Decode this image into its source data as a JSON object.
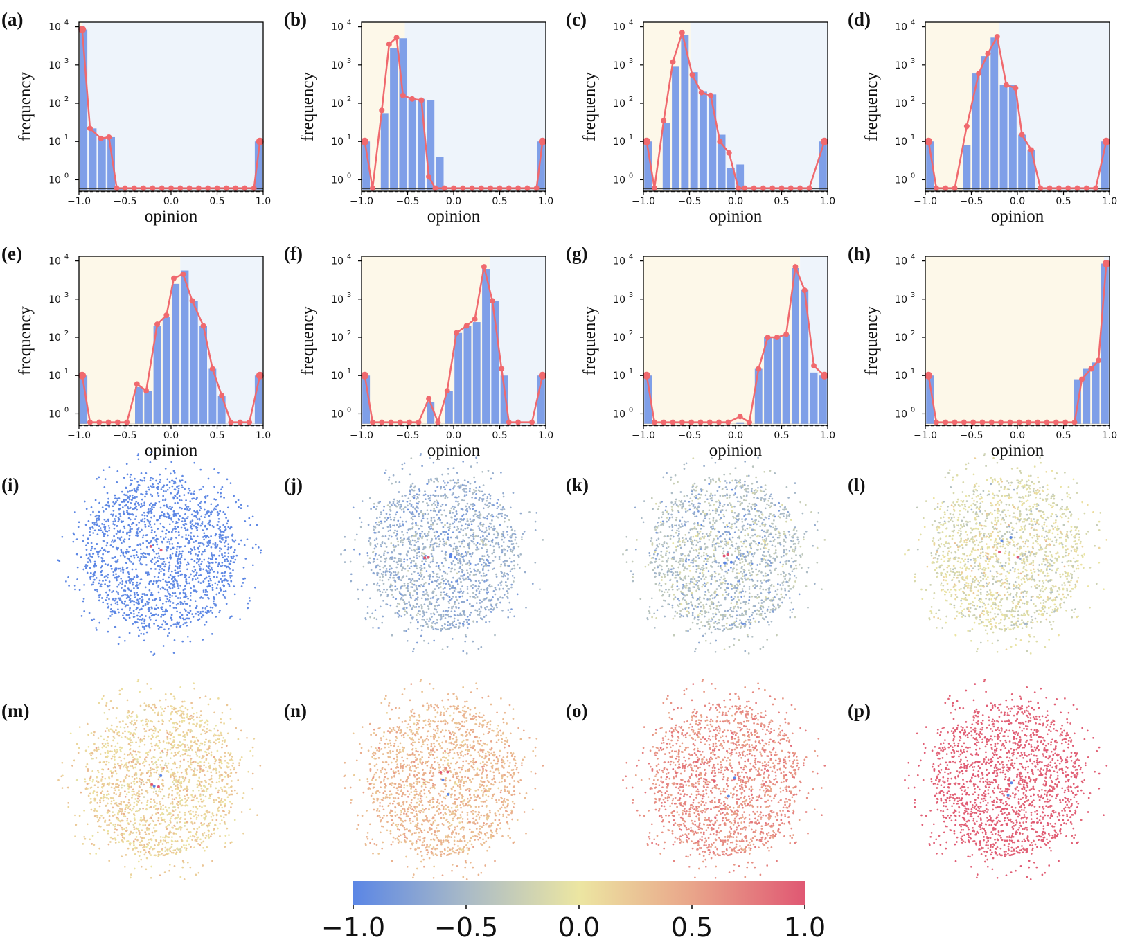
{
  "chart_data": [
    {
      "type": "bar",
      "panel": "(a)",
      "xlabel": "opinion",
      "ylabel": "frequency",
      "yscale": "log",
      "xlim": [
        -1.0,
        1.0
      ],
      "x": [
        -0.95,
        -0.85,
        -0.75,
        -0.65,
        -0.55,
        -0.45,
        -0.35,
        -0.25,
        -0.15,
        -0.05,
        0.05,
        0.15,
        0.25,
        0.35,
        0.45,
        0.55,
        0.65,
        0.75,
        0.85,
        0.95
      ],
      "values": [
        8500,
        22,
        12,
        13,
        0.6,
        0,
        0,
        0,
        0,
        0,
        0,
        0,
        0,
        0,
        0,
        0,
        0,
        0,
        0,
        10
      ],
      "line_x": [
        -0.965,
        -0.88,
        -0.76,
        -0.675,
        -0.59,
        -0.5,
        -0.4,
        -0.3,
        -0.2,
        -0.1,
        0,
        0.1,
        0.2,
        0.3,
        0.4,
        0.5,
        0.6,
        0.7,
        0.8,
        0.9,
        0.965
      ],
      "line_values": [
        8500,
        22,
        12,
        13,
        0.6,
        0.6,
        0.6,
        0.6,
        0.6,
        0.6,
        0.6,
        0.6,
        0.6,
        0.6,
        0.6,
        0.6,
        0.6,
        0.6,
        0.6,
        0.6,
        10
      ],
      "xticks": [
        "−1.0",
        "−0.5",
        "0.0",
        "0.5",
        "1.0"
      ],
      "yticks": [
        "10^0",
        "10^1",
        "10^2",
        "10^3",
        "10^4"
      ],
      "split": -0.97
    },
    {
      "type": "bar",
      "panel": "(b)",
      "xlabel": "opinion",
      "ylabel": "frequency",
      "yscale": "log",
      "xlim": [
        -1.0,
        1.0
      ],
      "x": [
        -0.95,
        -0.85,
        -0.75,
        -0.65,
        -0.55,
        -0.45,
        -0.35,
        -0.25,
        -0.15,
        -0.05,
        0.05,
        0.15,
        0.25,
        0.35,
        0.45,
        0.55,
        0.65,
        0.75,
        0.85,
        0.95
      ],
      "values": [
        10,
        0,
        55,
        2800,
        5000,
        140,
        130,
        120,
        4,
        0,
        0,
        0,
        0,
        0,
        0,
        0,
        0,
        0,
        0,
        10
      ],
      "line_x": [
        -0.965,
        -0.88,
        -0.78,
        -0.7,
        -0.62,
        -0.55,
        -0.45,
        -0.35,
        -0.27,
        -0.2,
        -0.1,
        0,
        0.1,
        0.2,
        0.3,
        0.4,
        0.5,
        0.6,
        0.7,
        0.8,
        0.9,
        0.965
      ],
      "line_values": [
        10,
        0.6,
        65,
        3500,
        5200,
        160,
        130,
        120,
        1.2,
        0.6,
        0.6,
        0.6,
        0.6,
        0.6,
        0.6,
        0.6,
        0.6,
        0.6,
        0.6,
        0.6,
        0.6,
        10
      ],
      "xticks": [
        "−1.0",
        "−0.5",
        "0.0",
        "0.5",
        "1.0"
      ],
      "yticks": [
        "10^0",
        "10^1",
        "10^2",
        "10^3",
        "10^4"
      ],
      "split": -0.53
    },
    {
      "type": "bar",
      "panel": "(c)",
      "xlabel": "opinion",
      "ylabel": "frequency",
      "yscale": "log",
      "xlim": [
        -1.0,
        1.0
      ],
      "x": [
        -0.95,
        -0.85,
        -0.75,
        -0.65,
        -0.55,
        -0.45,
        -0.35,
        -0.25,
        -0.15,
        -0.05,
        0.05,
        0.15,
        0.25,
        0.35,
        0.45,
        0.55,
        0.65,
        0.75,
        0.85,
        0.95
      ],
      "values": [
        10,
        0,
        30,
        900,
        6000,
        650,
        200,
        170,
        15,
        2,
        2.5,
        0,
        0,
        0,
        0,
        0,
        0,
        0,
        0,
        10
      ],
      "line_x": [
        -0.965,
        -0.88,
        -0.78,
        -0.68,
        -0.58,
        -0.47,
        -0.37,
        -0.27,
        -0.17,
        -0.07,
        0.03,
        0.1,
        0.2,
        0.3,
        0.4,
        0.5,
        0.6,
        0.7,
        0.8,
        0.965
      ],
      "line_values": [
        10,
        0.6,
        35,
        1200,
        7000,
        550,
        190,
        160,
        10,
        5,
        0.6,
        0.6,
        0.6,
        0.6,
        0.6,
        0.6,
        0.6,
        0.6,
        0.6,
        10
      ],
      "xticks": [
        "−1.0",
        "−0.5",
        "0.0",
        "0.5",
        "1.0"
      ],
      "yticks": [
        "10^0",
        "10^1",
        "10^2",
        "10^3",
        "10^4"
      ],
      "split": -0.49
    },
    {
      "type": "bar",
      "panel": "(d)",
      "xlabel": "opinion",
      "ylabel": "frequency",
      "yscale": "log",
      "xlim": [
        -1.0,
        1.0
      ],
      "x": [
        -0.95,
        -0.85,
        -0.75,
        -0.65,
        -0.55,
        -0.45,
        -0.35,
        -0.25,
        -0.15,
        -0.05,
        0.05,
        0.15,
        0.25,
        0.35,
        0.45,
        0.55,
        0.65,
        0.75,
        0.85,
        0.95
      ],
      "values": [
        10,
        0,
        0,
        0,
        8,
        600,
        1700,
        5200,
        300,
        300,
        15,
        6,
        0,
        0,
        0,
        0,
        0,
        0,
        0,
        10
      ],
      "line_x": [
        -0.965,
        -0.88,
        -0.78,
        -0.68,
        -0.55,
        -0.42,
        -0.32,
        -0.22,
        -0.12,
        -0.02,
        0.05,
        0.15,
        0.25,
        0.35,
        0.45,
        0.55,
        0.65,
        0.75,
        0.85,
        0.965
      ],
      "line_values": [
        10,
        0.6,
        0.6,
        0.6,
        25,
        600,
        2000,
        5500,
        300,
        250,
        15,
        6,
        0.6,
        0.6,
        0.6,
        0.6,
        0.6,
        0.6,
        0.6,
        10
      ],
      "xticks": [
        "−1.0",
        "−0.5",
        "0.0",
        "0.5",
        "1.0"
      ],
      "yticks": [
        "10^0",
        "10^1",
        "10^2",
        "10^3",
        "10^4"
      ],
      "split": -0.2
    },
    {
      "type": "bar",
      "panel": "(e)",
      "xlabel": "opinion",
      "ylabel": "frequency",
      "yscale": "log",
      "xlim": [
        -1.0,
        1.0
      ],
      "x": [
        -0.95,
        -0.85,
        -0.75,
        -0.65,
        -0.55,
        -0.45,
        -0.35,
        -0.25,
        -0.15,
        -0.05,
        0.05,
        0.15,
        0.25,
        0.35,
        0.45,
        0.55,
        0.65,
        0.75,
        0.85,
        0.95
      ],
      "values": [
        10,
        0,
        0,
        0,
        0,
        0,
        5,
        4,
        200,
        350,
        2500,
        5600,
        900,
        200,
        15,
        3,
        0,
        0,
        0,
        10
      ],
      "line_x": [
        -0.965,
        -0.88,
        -0.78,
        -0.68,
        -0.58,
        -0.48,
        -0.37,
        -0.27,
        -0.15,
        -0.05,
        0.03,
        0.13,
        0.23,
        0.35,
        0.45,
        0.55,
        0.65,
        0.75,
        0.85,
        0.965
      ],
      "line_values": [
        10,
        0.6,
        0.6,
        0.6,
        0.6,
        0.6,
        6,
        4,
        220,
        380,
        3500,
        4500,
        900,
        200,
        15,
        3,
        0.6,
        0.6,
        0.6,
        10
      ],
      "xticks": [
        "−1.0",
        "−0.5",
        "0.0",
        "0.5",
        "1.0"
      ],
      "yticks": [
        "10^0",
        "10^1",
        "10^2",
        "10^3",
        "10^4"
      ],
      "split": 0.1
    },
    {
      "type": "bar",
      "panel": "(f)",
      "xlabel": "opinion",
      "ylabel": "frequency",
      "yscale": "log",
      "xlim": [
        -1.0,
        1.0
      ],
      "x": [
        -0.95,
        -0.85,
        -0.75,
        -0.65,
        -0.55,
        -0.45,
        -0.35,
        -0.25,
        -0.15,
        -0.05,
        0.05,
        0.15,
        0.25,
        0.35,
        0.45,
        0.55,
        0.65,
        0.75,
        0.85,
        0.95
      ],
      "values": [
        10,
        0,
        0,
        0,
        0,
        0,
        0,
        2,
        0,
        4,
        130,
        200,
        250,
        6000,
        900,
        10,
        0,
        0,
        0,
        10
      ],
      "line_x": [
        -0.965,
        -0.88,
        -0.78,
        -0.68,
        -0.58,
        -0.48,
        -0.38,
        -0.27,
        -0.17,
        -0.07,
        0.03,
        0.14,
        0.23,
        0.33,
        0.42,
        0.52,
        0.6,
        0.7,
        0.85,
        0.965
      ],
      "line_values": [
        10,
        0.6,
        0.6,
        0.6,
        0.6,
        0.6,
        0.6,
        2.5,
        0.6,
        4,
        130,
        200,
        300,
        7000,
        900,
        15,
        0.6,
        0.6,
        0.6,
        10
      ],
      "xticks": [
        "−1.0",
        "−0.5",
        "0.0",
        "0.5",
        "1.0"
      ],
      "yticks": [
        "10^0",
        "10^1",
        "10^2",
        "10^3",
        "10^4"
      ],
      "split": 0.39
    },
    {
      "type": "bar",
      "panel": "(g)",
      "xlabel": "opinion",
      "ylabel": "frequency",
      "yscale": "log",
      "xlim": [
        -1.0,
        1.0
      ],
      "x": [
        -0.95,
        -0.85,
        -0.75,
        -0.65,
        -0.55,
        -0.45,
        -0.35,
        -0.25,
        -0.15,
        -0.05,
        0.05,
        0.15,
        0.25,
        0.35,
        0.45,
        0.55,
        0.65,
        0.75,
        0.85,
        0.95
      ],
      "values": [
        10,
        0,
        0,
        0,
        0,
        0,
        0,
        0,
        0,
        0,
        0.6,
        0,
        15,
        100,
        100,
        120,
        6500,
        1800,
        12,
        10
      ],
      "line_x": [
        -0.965,
        -0.88,
        -0.78,
        -0.68,
        -0.58,
        -0.48,
        -0.38,
        -0.28,
        -0.18,
        -0.08,
        0.05,
        0.15,
        0.25,
        0.35,
        0.45,
        0.55,
        0.65,
        0.75,
        0.85,
        0.965
      ],
      "line_values": [
        10,
        0.6,
        0.6,
        0.6,
        0.6,
        0.6,
        0.6,
        0.6,
        0.6,
        0.6,
        0.85,
        0.6,
        15,
        100,
        100,
        120,
        7000,
        1700,
        18,
        10
      ],
      "xticks": [
        "−1.0",
        "−0.5",
        "0.0",
        "0.5",
        "1.0"
      ],
      "yticks": [
        "10^0",
        "10^1",
        "10^2",
        "10^3",
        "10^4"
      ],
      "split": 0.7
    },
    {
      "type": "bar",
      "panel": "(h)",
      "xlabel": "opinion",
      "ylabel": "frequency",
      "yscale": "log",
      "xlim": [
        -1.0,
        1.0
      ],
      "x": [
        -0.95,
        -0.85,
        -0.75,
        -0.65,
        -0.55,
        -0.45,
        -0.35,
        -0.25,
        -0.15,
        -0.05,
        0.05,
        0.15,
        0.25,
        0.35,
        0.45,
        0.55,
        0.65,
        0.75,
        0.85,
        0.95
      ],
      "values": [
        10,
        0,
        0,
        0,
        0,
        0,
        0,
        0,
        0,
        0,
        0,
        0,
        0,
        0,
        0,
        0,
        8,
        15,
        22,
        8500
      ],
      "line_x": [
        -0.965,
        -0.88,
        -0.78,
        -0.68,
        -0.58,
        -0.48,
        -0.38,
        -0.28,
        -0.18,
        -0.08,
        0.02,
        0.12,
        0.22,
        0.32,
        0.42,
        0.52,
        0.62,
        0.7,
        0.8,
        0.88,
        0.965
      ],
      "line_values": [
        10,
        0.6,
        0.6,
        0.6,
        0.6,
        0.6,
        0.6,
        0.6,
        0.6,
        0.6,
        0.6,
        0.6,
        0.6,
        0.6,
        0.6,
        0.6,
        0.6,
        8,
        15,
        25,
        8500
      ],
      "xticks": [
        "−1.0",
        "−0.5",
        "0.0",
        "0.5",
        "1.0"
      ],
      "yticks": [
        "10^0",
        "10^1",
        "10^2",
        "10^3",
        "10^4"
      ],
      "split": 0.94
    },
    {
      "type": "scatter",
      "panel": "(i)",
      "mean_opinion": -0.98,
      "spread": 0.03
    },
    {
      "type": "scatter",
      "panel": "(j)",
      "mean_opinion": -0.6,
      "spread": 0.15
    },
    {
      "type": "scatter",
      "panel": "(k)",
      "mean_opinion": -0.45,
      "spread": 0.2
    },
    {
      "type": "scatter",
      "panel": "(l)",
      "mean_opinion": -0.12,
      "spread": 0.2
    },
    {
      "type": "scatter",
      "panel": "(m)",
      "mean_opinion": 0.15,
      "spread": 0.15
    },
    {
      "type": "scatter",
      "panel": "(n)",
      "mean_opinion": 0.35,
      "spread": 0.12
    },
    {
      "type": "scatter",
      "panel": "(o)",
      "mean_opinion": 0.65,
      "spread": 0.12
    },
    {
      "type": "scatter",
      "panel": "(p)",
      "mean_opinion": 0.95,
      "spread": 0.04
    }
  ],
  "colorbar": {
    "min": -1.0,
    "max": 1.0,
    "ticks": [
      "−1.0",
      "−0.5",
      "0.0",
      "0.5",
      "1.0"
    ],
    "colors": [
      "#5b86e5",
      "#a9bac7",
      "#ece6a2",
      "#e9a58a",
      "#e05873"
    ]
  },
  "style": {
    "bar_color": "#7f9fe8",
    "line_color": "#f0696e",
    "bg_left": "#fdf8e9",
    "bg_right": "#eef4fb"
  }
}
